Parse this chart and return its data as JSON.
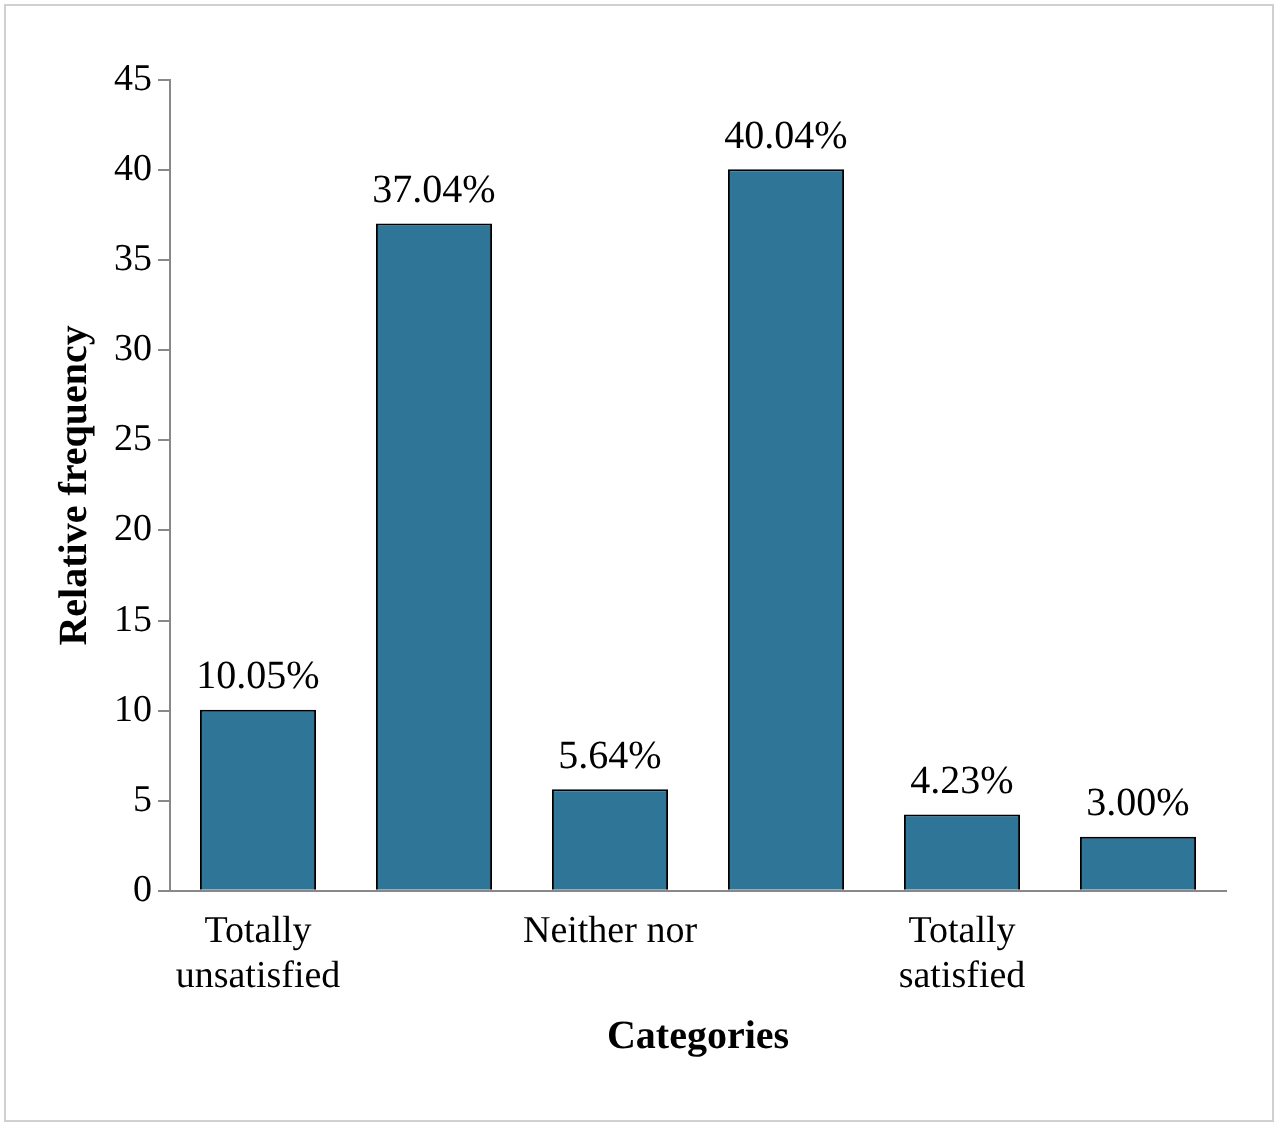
{
  "chart_data": {
    "type": "bar",
    "xlabel": "Categories",
    "ylabel": "Relative frequency",
    "categories": [
      "Totally unsatisfied",
      null,
      "Neither nor",
      null,
      "Totally satisfied",
      null
    ],
    "values": [
      10.05,
      37.04,
      5.64,
      40.04,
      4.23,
      3.0
    ],
    "value_labels": [
      "10.05%",
      "37.04%",
      "5.64%",
      "40.04%",
      "4.23%",
      "3.00%"
    ],
    "color": "#2e7598",
    "ylim": [
      0,
      45
    ],
    "yticks": [
      0,
      5,
      10,
      15,
      20,
      25,
      30,
      35,
      40,
      45
    ],
    "grid": false,
    "legend": false
  }
}
